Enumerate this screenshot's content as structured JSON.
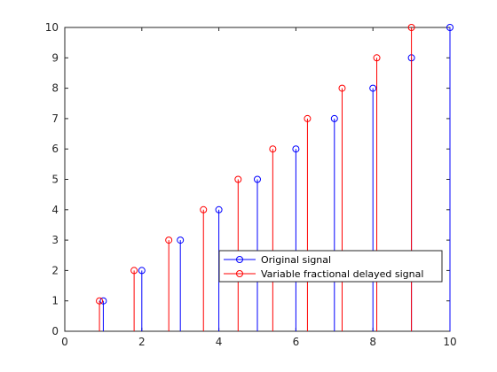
{
  "colors": {
    "background": "#ffffff",
    "axes": "#262626",
    "original": "#0000ff",
    "delayed": "#ff0000"
  },
  "chart_data": {
    "type": "stem",
    "xlim": [
      0,
      10
    ],
    "ylim": [
      0,
      10
    ],
    "x_ticks": [
      0,
      2,
      4,
      6,
      8,
      10
    ],
    "y_ticks": [
      0,
      1,
      2,
      3,
      4,
      5,
      6,
      7,
      8,
      9,
      10
    ],
    "x_tick_labels": [
      "0",
      "2",
      "4",
      "6",
      "8",
      "10"
    ],
    "y_tick_labels": [
      "0",
      "1",
      "2",
      "3",
      "4",
      "5",
      "6",
      "7",
      "8",
      "9",
      "10"
    ],
    "grid": false,
    "legend_position": "inside-lower-right",
    "marker": "circle",
    "series": [
      {
        "name": "Original signal",
        "color": "#0000ff",
        "x": [
          1,
          2,
          3,
          4,
          5,
          6,
          7,
          8,
          9,
          10
        ],
        "y": [
          1,
          2,
          3,
          4,
          5,
          6,
          7,
          8,
          9,
          10
        ]
      },
      {
        "name": "Variable fractional delayed signal",
        "color": "#ff0000",
        "x": [
          0.9,
          1.8,
          2.7,
          3.6,
          4.5,
          5.4,
          6.3,
          7.2,
          8.1,
          9.0
        ],
        "y": [
          1,
          2,
          3,
          4,
          5,
          6,
          7,
          8,
          9,
          10
        ]
      }
    ]
  }
}
